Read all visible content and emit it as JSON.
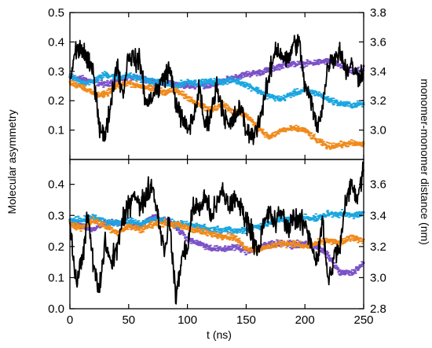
{
  "figure": {
    "left_axis_label": "Molecular asymmetry",
    "right_axis_label": "monomer-monomer distance (nm)",
    "x_axis_label": "t (ns)",
    "colors": {
      "black": "#000000",
      "purple": "#7b52c7",
      "cyan": "#1aa6e0",
      "orange": "#f08a1c"
    }
  },
  "chart_data": [
    {
      "type": "line",
      "panel": "top",
      "xlabel": "t (ns)",
      "ylabel": "",
      "y2label": "",
      "xlim": [
        0,
        250
      ],
      "ylim": [
        0,
        0.5
      ],
      "y2lim": [
        2.8,
        3.8
      ],
      "x_ticks": [
        0,
        50,
        100,
        150,
        200,
        250
      ],
      "y_ticks": [
        0.1,
        0.2,
        0.3,
        0.4,
        0.5
      ],
      "y_tick_labels": [
        "0.1",
        "0.2",
        "0.3",
        "0.4",
        "0.5"
      ],
      "y2_ticks": [
        3.0,
        3.2,
        3.4,
        3.6,
        3.8
      ],
      "y2_tick_labels": [
        "3.0",
        "3.2",
        "3.4",
        "3.6",
        "3.8"
      ],
      "grid": false,
      "series": [
        {
          "axis": "left",
          "style": "line",
          "color": "#000000",
          "x": [
            0,
            5,
            10,
            15,
            20,
            25,
            30,
            35,
            40,
            45,
            50,
            55,
            60,
            65,
            70,
            75,
            80,
            85,
            90,
            95,
            100,
            105,
            110,
            115,
            120,
            125,
            130,
            135,
            140,
            145,
            150,
            155,
            160,
            165,
            170,
            175,
            180,
            185,
            190,
            195,
            200,
            205,
            210,
            215,
            220,
            225,
            230,
            235,
            240,
            245,
            250
          ],
          "y": [
            0.27,
            0.37,
            0.38,
            0.33,
            0.3,
            0.12,
            0.07,
            0.2,
            0.33,
            0.22,
            0.36,
            0.34,
            0.33,
            0.18,
            0.22,
            0.24,
            0.28,
            0.31,
            0.2,
            0.14,
            0.1,
            0.14,
            0.24,
            0.11,
            0.16,
            0.25,
            0.17,
            0.11,
            0.14,
            0.18,
            0.1,
            0.08,
            0.12,
            0.19,
            0.29,
            0.38,
            0.36,
            0.33,
            0.39,
            0.4,
            0.25,
            0.2,
            0.11,
            0.18,
            0.33,
            0.35,
            0.37,
            0.3,
            0.32,
            0.28,
            0.31
          ]
        },
        {
          "axis": "right",
          "style": "dots",
          "color": "#7b52c7",
          "x": [
            0,
            10,
            20,
            30,
            40,
            50,
            60,
            70,
            80,
            90,
            100,
            110,
            120,
            130,
            140,
            150,
            160,
            170,
            180,
            190,
            200,
            210,
            220,
            230,
            240,
            250
          ],
          "y": [
            3.36,
            3.35,
            3.33,
            3.31,
            3.34,
            3.36,
            3.35,
            3.33,
            3.32,
            3.31,
            3.3,
            3.31,
            3.3,
            3.33,
            3.36,
            3.38,
            3.39,
            3.41,
            3.44,
            3.45,
            3.45,
            3.46,
            3.47,
            3.44,
            3.4,
            3.41
          ]
        },
        {
          "axis": "right",
          "style": "dots",
          "color": "#1aa6e0",
          "x": [
            0,
            10,
            20,
            30,
            40,
            50,
            60,
            70,
            80,
            90,
            100,
            110,
            120,
            130,
            140,
            150,
            160,
            170,
            180,
            190,
            200,
            210,
            220,
            230,
            240,
            250
          ],
          "y": [
            3.37,
            3.32,
            3.33,
            3.38,
            3.36,
            3.37,
            3.35,
            3.33,
            3.32,
            3.3,
            3.33,
            3.32,
            3.33,
            3.33,
            3.34,
            3.31,
            3.27,
            3.23,
            3.21,
            3.25,
            3.27,
            3.25,
            3.21,
            3.18,
            3.17,
            3.18
          ]
        },
        {
          "axis": "right",
          "style": "dots",
          "color": "#f08a1c",
          "x": [
            0,
            10,
            20,
            30,
            40,
            50,
            60,
            70,
            80,
            90,
            100,
            110,
            120,
            130,
            140,
            150,
            160,
            170,
            180,
            190,
            200,
            210,
            220,
            230,
            240,
            250
          ],
          "y": [
            3.32,
            3.3,
            3.25,
            3.24,
            3.3,
            3.32,
            3.3,
            3.28,
            3.26,
            3.27,
            3.22,
            3.18,
            3.13,
            3.18,
            3.12,
            3.1,
            3.02,
            2.95,
            3.0,
            3.01,
            3.0,
            2.93,
            2.89,
            2.9,
            2.91,
            2.9
          ]
        }
      ]
    },
    {
      "type": "line",
      "panel": "bottom",
      "xlabel": "t (ns)",
      "ylabel": "",
      "y2label": "",
      "xlim": [
        0,
        250
      ],
      "ylim": [
        0,
        0.48
      ],
      "y2lim": [
        2.8,
        3.76
      ],
      "x_ticks": [
        0,
        50,
        100,
        150,
        200,
        250
      ],
      "x_tick_labels": [
        "0",
        "50",
        "100",
        "150",
        "200",
        "250"
      ],
      "y_ticks": [
        0.0,
        0.1,
        0.2,
        0.3,
        0.4
      ],
      "y_tick_labels": [
        "0.0",
        "0.1",
        "0.2",
        "0.3",
        "0.4"
      ],
      "y2_ticks": [
        2.8,
        3.0,
        3.2,
        3.4,
        3.6
      ],
      "y2_tick_labels": [
        "2.8",
        "3.0",
        "3.2",
        "3.4",
        "3.6"
      ],
      "grid": false,
      "series": [
        {
          "axis": "left",
          "style": "line",
          "color": "#000000",
          "x": [
            0,
            5,
            10,
            15,
            20,
            25,
            30,
            35,
            40,
            45,
            50,
            55,
            60,
            65,
            70,
            75,
            80,
            85,
            90,
            95,
            100,
            105,
            110,
            115,
            120,
            125,
            130,
            135,
            140,
            145,
            150,
            155,
            160,
            165,
            170,
            175,
            180,
            185,
            190,
            195,
            200,
            205,
            210,
            215,
            220,
            225,
            230,
            235,
            240,
            245,
            250
          ],
          "y": [
            0.28,
            0.08,
            0.15,
            0.3,
            0.14,
            0.05,
            0.22,
            0.14,
            0.2,
            0.28,
            0.33,
            0.38,
            0.32,
            0.37,
            0.4,
            0.3,
            0.19,
            0.28,
            0.03,
            0.16,
            0.2,
            0.33,
            0.32,
            0.36,
            0.3,
            0.33,
            0.38,
            0.33,
            0.35,
            0.33,
            0.29,
            0.24,
            0.19,
            0.27,
            0.31,
            0.27,
            0.32,
            0.25,
            0.3,
            0.28,
            0.27,
            0.22,
            0.15,
            0.28,
            0.08,
            0.17,
            0.2,
            0.35,
            0.4,
            0.36,
            0.45
          ]
        },
        {
          "axis": "right",
          "style": "dots",
          "color": "#7b52c7",
          "x": [
            0,
            10,
            20,
            30,
            40,
            50,
            60,
            70,
            80,
            90,
            100,
            110,
            120,
            130,
            140,
            150,
            160,
            170,
            180,
            190,
            200,
            210,
            220,
            230,
            240,
            250
          ],
          "y": [
            3.36,
            3.33,
            3.31,
            3.35,
            3.36,
            3.34,
            3.33,
            3.39,
            3.37,
            3.33,
            3.25,
            3.22,
            3.19,
            3.18,
            3.2,
            3.17,
            3.19,
            3.22,
            3.22,
            3.21,
            3.22,
            3.2,
            3.14,
            3.03,
            3.03,
            3.09
          ]
        },
        {
          "axis": "right",
          "style": "dots",
          "color": "#1aa6e0",
          "x": [
            0,
            10,
            20,
            30,
            40,
            50,
            60,
            70,
            80,
            90,
            100,
            110,
            120,
            130,
            140,
            150,
            160,
            170,
            180,
            190,
            200,
            210,
            220,
            230,
            240,
            250
          ],
          "y": [
            3.37,
            3.37,
            3.39,
            3.36,
            3.35,
            3.37,
            3.34,
            3.38,
            3.37,
            3.34,
            3.34,
            3.33,
            3.31,
            3.31,
            3.3,
            3.31,
            3.33,
            3.35,
            3.38,
            3.37,
            3.39,
            3.38,
            3.41,
            3.41,
            3.4,
            3.41
          ]
        },
        {
          "axis": "right",
          "style": "dots",
          "color": "#f08a1c",
          "x": [
            0,
            10,
            20,
            30,
            40,
            50,
            60,
            70,
            80,
            90,
            100,
            110,
            120,
            130,
            140,
            150,
            160,
            170,
            180,
            190,
            200,
            210,
            220,
            230,
            240,
            250
          ],
          "y": [
            3.35,
            3.32,
            3.37,
            3.33,
            3.29,
            3.33,
            3.31,
            3.34,
            3.35,
            3.34,
            3.32,
            3.3,
            3.28,
            3.27,
            3.26,
            3.19,
            3.18,
            3.2,
            3.22,
            3.22,
            3.2,
            3.22,
            3.24,
            3.22,
            3.26,
            3.24
          ]
        }
      ]
    }
  ]
}
